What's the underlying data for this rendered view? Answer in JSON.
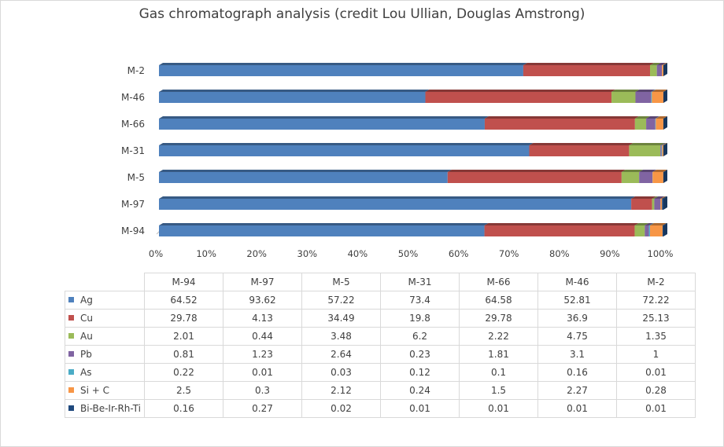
{
  "chart_data": {
    "type": "bar",
    "orientation": "horizontal",
    "stacked": "percent",
    "title": "Gas chromatograph analysis (credit Lou Ullian, Douglas Amstrong)",
    "categories": [
      "M-94",
      "M-97",
      "M-5",
      "M-31",
      "M-66",
      "M-46",
      "M-2"
    ],
    "xlim": [
      0,
      100
    ],
    "xticks": [
      "0%",
      "10%",
      "20%",
      "30%",
      "40%",
      "50%",
      "60%",
      "70%",
      "80%",
      "90%",
      "100%"
    ],
    "grid": false,
    "legend": "data-table",
    "series": [
      {
        "name": "Ag",
        "color": "#4f81bd",
        "values": [
          64.52,
          93.62,
          57.22,
          73.4,
          64.58,
          52.81,
          72.22
        ]
      },
      {
        "name": "Cu",
        "color": "#c0504d",
        "values": [
          29.78,
          4.13,
          34.49,
          19.8,
          29.78,
          36.9,
          25.13
        ]
      },
      {
        "name": "Au",
        "color": "#9bbb59",
        "values": [
          2.01,
          0.44,
          3.48,
          6.2,
          2.22,
          4.75,
          1.35
        ]
      },
      {
        "name": "Pb",
        "color": "#8064a2",
        "values": [
          0.81,
          1.23,
          2.64,
          0.23,
          1.81,
          3.1,
          1
        ]
      },
      {
        "name": "As",
        "color": "#4bacc6",
        "values": [
          0.22,
          0.01,
          0.03,
          0.12,
          0.1,
          0.16,
          0.01
        ]
      },
      {
        "name": "Si + C",
        "color": "#f79646",
        "values": [
          2.5,
          0.3,
          2.12,
          0.24,
          1.5,
          2.27,
          0.28
        ]
      },
      {
        "name": "Bi-Be-Ir-Rh-Ti",
        "color": "#1f497d",
        "values": [
          0.16,
          0.27,
          0.02,
          0.01,
          0.01,
          0.01,
          0.01
        ]
      }
    ]
  }
}
